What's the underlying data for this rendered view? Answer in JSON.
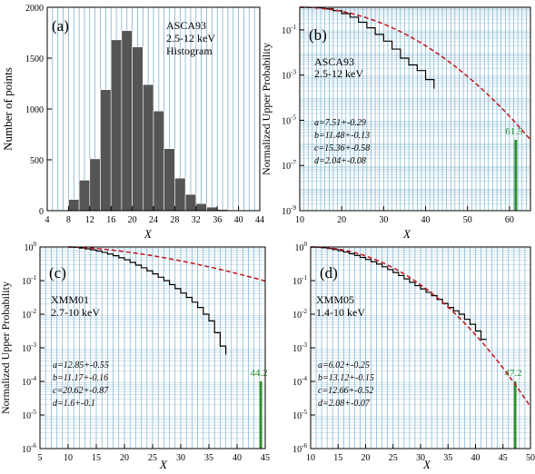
{
  "chart_data": [
    {
      "panel": "(a)",
      "type": "bar",
      "annotation": [
        "ASCA93",
        "2.5-12 keV",
        "Histogram"
      ],
      "xlabel": "X",
      "ylabel": "Number of points",
      "xlim": [
        4,
        44
      ],
      "ylim": [
        0,
        2000
      ],
      "xticks": [
        "4",
        "8",
        "12",
        "16",
        "20",
        "24",
        "28",
        "32",
        "36",
        "40",
        "44"
      ],
      "yticks": [
        "0",
        "500",
        "1000",
        "1500",
        "2000"
      ],
      "bin_width": 2,
      "bins": [
        {
          "x0": 6,
          "value": 5
        },
        {
          "x0": 8,
          "value": 110
        },
        {
          "x0": 10,
          "value": 300
        },
        {
          "x0": 12,
          "value": 510
        },
        {
          "x0": 14,
          "value": 1190
        },
        {
          "x0": 16,
          "value": 1680
        },
        {
          "x0": 18,
          "value": 1770
        },
        {
          "x0": 20,
          "value": 1610
        },
        {
          "x0": 22,
          "value": 1240
        },
        {
          "x0": 24,
          "value": 980
        },
        {
          "x0": 26,
          "value": 610
        },
        {
          "x0": 28,
          "value": 320
        },
        {
          "x0": 30,
          "value": 160
        },
        {
          "x0": 32,
          "value": 70
        },
        {
          "x0": 34,
          "value": 35
        },
        {
          "x0": 36,
          "value": 12
        },
        {
          "x0": 38,
          "value": 5
        },
        {
          "x0": 40,
          "value": 2
        }
      ],
      "colors": {
        "bar": "#555555",
        "grid": "#6aa7c8"
      }
    },
    {
      "panel": "(b)",
      "type": "line",
      "annotation": [
        "ASCA93",
        "2.5-12 keV"
      ],
      "params": [
        "a=7.51+-0.29",
        "b=11.48+-0.13",
        "c=15.36+-0.58",
        "d=2.04+-0.08"
      ],
      "xlabel": "X",
      "ylabel": "Normalized Upper Probability",
      "xlim": [
        10,
        65
      ],
      "ylog": [
        -9,
        0
      ],
      "xticks": [
        10,
        20,
        30,
        40,
        50,
        60
      ],
      "yticks": [
        "10-9",
        "10-7",
        "10-5",
        "10-3",
        "10-1"
      ],
      "fit": {
        "x0": 10,
        "xs": 10,
        "a": 7.51,
        "b": 11.48,
        "c": 15.36,
        "d": 2.04
      },
      "empirical_x": [
        10,
        12,
        14,
        16,
        18,
        20,
        22,
        24,
        26,
        28,
        30,
        32,
        34,
        36,
        38,
        40,
        42
      ],
      "empirical_log10_p": [
        0,
        -0.003,
        -0.024,
        -0.07,
        -0.15,
        -0.28,
        -0.44,
        -0.66,
        -0.91,
        -1.2,
        -1.5,
        -1.85,
        -2.25,
        -2.55,
        -2.8,
        -3.2,
        -3.6
      ],
      "marker": {
        "x": 61.5,
        "label": "61.5"
      },
      "colors": {
        "fit": "#c0141b",
        "empirical": "#000000",
        "marker": "#2f8f2f",
        "grid": "#6aa7c8"
      }
    },
    {
      "panel": "(c)",
      "type": "line",
      "annotation": [
        "XMM01",
        "2.7-10 keV"
      ],
      "params": [
        "a=12.85+-0.55",
        "b=11.17+-0.16",
        "c=20.62+-0.87",
        "d=1.6+-0.1"
      ],
      "xlabel": "X",
      "ylabel": "Normalized Upper Probability",
      "xlim": [
        5,
        45
      ],
      "ylog": [
        -6,
        0
      ],
      "xticks": [
        5,
        10,
        15,
        20,
        25,
        30,
        35,
        40,
        45
      ],
      "yticks": [
        "10-6",
        "10-5",
        "10-4",
        "10-3",
        "10-2",
        "10-1",
        "100"
      ],
      "fit": {
        "x0": 10,
        "xs": 10,
        "a": 12.85,
        "b": 11.17,
        "c": 20.62,
        "d": 1.6
      },
      "empirical_x": [
        10,
        11,
        12,
        13,
        14,
        15,
        16,
        17,
        18,
        19,
        20,
        21,
        22,
        23,
        24,
        25,
        26,
        27,
        28,
        29,
        30,
        31,
        32,
        33,
        34,
        35,
        36,
        37,
        38
      ],
      "empirical_log10_p": [
        0,
        -0.012,
        -0.03,
        -0.054,
        -0.085,
        -0.12,
        -0.16,
        -0.21,
        -0.26,
        -0.32,
        -0.38,
        -0.46,
        -0.54,
        -0.62,
        -0.71,
        -0.8,
        -0.9,
        -1.0,
        -1.12,
        -1.24,
        -1.37,
        -1.5,
        -1.64,
        -1.8,
        -2.0,
        -2.2,
        -2.55,
        -2.95,
        -3.2
      ],
      "marker": {
        "x": 44.2,
        "label": "44.2"
      },
      "colors": {
        "fit": "#c0141b",
        "empirical": "#000000",
        "marker": "#2f8f2f",
        "grid": "#6aa7c8"
      }
    },
    {
      "panel": "(d)",
      "type": "line",
      "annotation": [
        "XMM05",
        "1.4-10 keV"
      ],
      "params": [
        "a=6.02+-0.25",
        "b=13.12+-0.15",
        "c=12.66+-0.52",
        "d=2.08+-0.07"
      ],
      "xlabel": "X",
      "ylabel": "",
      "xlim": [
        10,
        50
      ],
      "ylog": [
        -6,
        0
      ],
      "xticks": [
        10,
        15,
        20,
        25,
        30,
        35,
        40,
        45,
        50
      ],
      "yticks": [
        "10-6",
        "10-5",
        "10-4",
        "10-3",
        "10-2",
        "10-1",
        "100"
      ],
      "fit": {
        "x0": 10,
        "xs": 10,
        "a": 6.02,
        "b": 13.12,
        "c": 12.66,
        "d": 2.08
      },
      "empirical_x": [
        10,
        11,
        12,
        13,
        14,
        15,
        16,
        17,
        18,
        19,
        20,
        21,
        22,
        23,
        24,
        25,
        26,
        27,
        28,
        29,
        30,
        31,
        32,
        33,
        34,
        35,
        36,
        37,
        38,
        39,
        40,
        41,
        42
      ],
      "empirical_log10_p": [
        0,
        -0.008,
        -0.022,
        -0.045,
        -0.075,
        -0.11,
        -0.15,
        -0.2,
        -0.25,
        -0.31,
        -0.37,
        -0.44,
        -0.51,
        -0.59,
        -0.67,
        -0.76,
        -0.85,
        -0.95,
        -1.05,
        -1.15,
        -1.25,
        -1.35,
        -1.45,
        -1.56,
        -1.68,
        -1.8,
        -1.9,
        -2.0,
        -2.15,
        -2.3,
        -2.5,
        -2.75,
        -2.75
      ],
      "marker": {
        "x": 47.2,
        "label": "47.2"
      },
      "colors": {
        "fit": "#c0141b",
        "empirical": "#000000",
        "marker": "#2f8f2f",
        "grid": "#6aa7c8"
      }
    }
  ]
}
